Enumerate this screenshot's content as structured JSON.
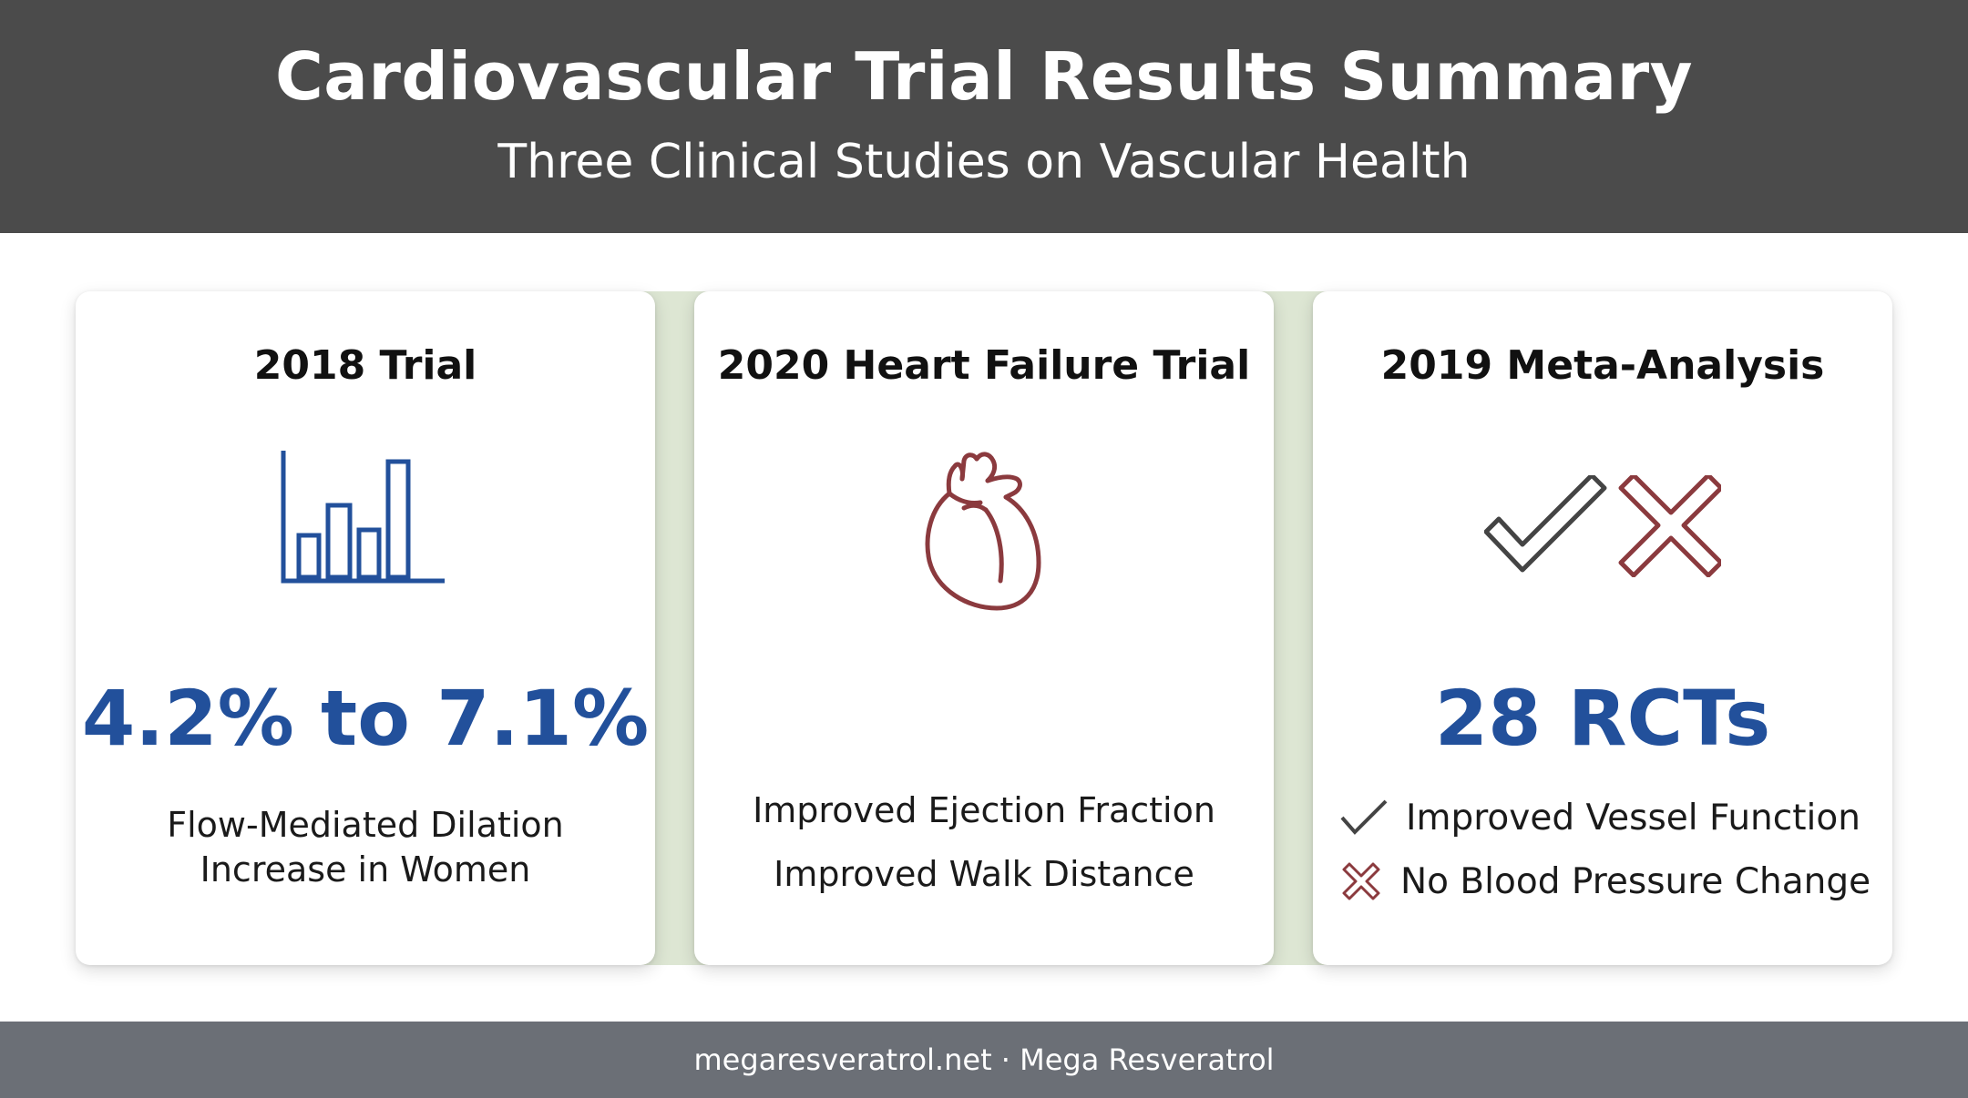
{
  "header": {
    "title": "Cardiovascular Trial Results Summary",
    "subtitle": "Three Clinical Studies on Vascular Health"
  },
  "cards": [
    {
      "title": "2018 Trial",
      "icon": "bar-chart-icon",
      "stat": "4.2% to 7.1%",
      "description_lines": [
        "Flow-Mediated Dilation",
        "Increase in Women"
      ]
    },
    {
      "title": "2020 Heart Failure Trial",
      "icon": "heart-icon",
      "description_lines": [
        "Improved Ejection Fraction",
        "Improved Walk Distance"
      ]
    },
    {
      "title": "2019 Meta-Analysis",
      "icon": "check-and-cross-icon",
      "stat": "28 RCTs",
      "items": [
        {
          "icon": "check-icon",
          "text": "Improved Vessel Function"
        },
        {
          "icon": "cross-icon",
          "text": "No Blood Pressure Change"
        }
      ]
    }
  ],
  "footer": {
    "text": "megaresveratrol.net · Mega Resveratrol"
  },
  "colors": {
    "header_bg": "#4b4b4b",
    "footer_bg": "#6b6f76",
    "accent_blue": "#22509b",
    "accent_red": "#8b3a3e",
    "band_green": "#dde6d3",
    "check_gray": "#444444"
  }
}
